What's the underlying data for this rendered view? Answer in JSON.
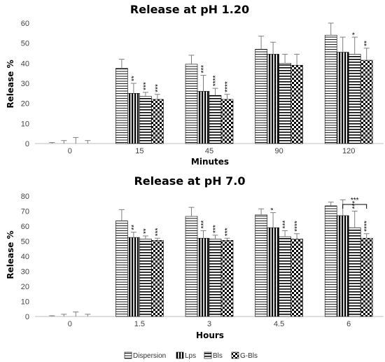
{
  "chart_data": [
    {
      "type": "bar",
      "title": "Release at pH 1.20",
      "xlabel": "Minutes",
      "ylabel": "Release %",
      "ylim": [
        0,
        60
      ],
      "yticks": [
        0,
        10,
        20,
        30,
        40,
        50,
        60
      ],
      "grid": false,
      "categories": [
        "0",
        "15",
        "45",
        "90",
        "120"
      ],
      "series": [
        {
          "name": "Dispersion",
          "values": [
            0,
            37.5,
            39.5,
            47,
            54
          ],
          "errors": [
            0.5,
            4.5,
            4.5,
            6.5,
            6
          ]
        },
        {
          "name": "Lps",
          "values": [
            0,
            25,
            26,
            44.5,
            45.5
          ],
          "errors": [
            1.5,
            5,
            8,
            6,
            7.5
          ]
        },
        {
          "name": "Bls",
          "values": [
            0,
            23.5,
            24,
            40,
            44.5
          ],
          "errors": [
            3,
            2,
            3.5,
            4.5,
            8.5
          ]
        },
        {
          "name": "G-Bls",
          "values": [
            0,
            22,
            22,
            39,
            41.5
          ],
          "errors": [
            1.5,
            2.5,
            2.5,
            5.5,
            6
          ]
        }
      ],
      "significance": [
        {
          "category": "15",
          "series": "Lps",
          "label": "**"
        },
        {
          "category": "15",
          "series": "Bls",
          "label": "***"
        },
        {
          "category": "15",
          "series": "G-Bls",
          "label": "***"
        },
        {
          "category": "45",
          "series": "Lps",
          "label": "***"
        },
        {
          "category": "45",
          "series": "Bls",
          "label": "****"
        },
        {
          "category": "45",
          "series": "G-Bls",
          "label": "****"
        },
        {
          "category": "120",
          "series": "Bls",
          "label": "*"
        },
        {
          "category": "120",
          "series": "G-Bls",
          "label": "**"
        }
      ]
    },
    {
      "type": "bar",
      "title": "Release at pH 7.0",
      "xlabel": "Hours",
      "ylabel": "Release %",
      "ylim": [
        0,
        80
      ],
      "yticks": [
        0,
        10,
        20,
        30,
        40,
        50,
        60,
        70,
        80
      ],
      "grid": false,
      "categories": [
        "0",
        "1.5",
        "3",
        "4.5",
        "6"
      ],
      "series": [
        {
          "name": "Dispersion",
          "values": [
            0,
            63.5,
            66.5,
            67.5,
            73.5
          ],
          "errors": [
            0.5,
            7.5,
            6,
            4,
            2.5
          ]
        },
        {
          "name": "Lps",
          "values": [
            0,
            52.5,
            52,
            59,
            67
          ],
          "errors": [
            1.5,
            3.5,
            5,
            10,
            10.5
          ]
        },
        {
          "name": "Bls",
          "values": [
            0,
            51.5,
            51.5,
            53,
            59
          ],
          "errors": [
            3,
            2,
            2.5,
            4,
            11
          ]
        },
        {
          "name": "G-Bls",
          "values": [
            0,
            50.5,
            50.5,
            51.5,
            52
          ],
          "errors": [
            1.5,
            1.5,
            1.5,
            3.5,
            3
          ]
        }
      ],
      "significance": [
        {
          "category": "1.5",
          "series": "Lps",
          "label": "**"
        },
        {
          "category": "1.5",
          "series": "Bls",
          "label": "**"
        },
        {
          "category": "1.5",
          "series": "G-Bls",
          "label": "***"
        },
        {
          "category": "3",
          "series": "Lps",
          "label": "***"
        },
        {
          "category": "3",
          "series": "Bls",
          "label": "***"
        },
        {
          "category": "3",
          "series": "G-Bls",
          "label": "***"
        },
        {
          "category": "4.5",
          "series": "Lps",
          "label": "*"
        },
        {
          "category": "4.5",
          "series": "Bls",
          "label": "***"
        },
        {
          "category": "4.5",
          "series": "G-Bls",
          "label": "****"
        },
        {
          "category": "6",
          "series": "Bls",
          "label": "***"
        },
        {
          "category": "6",
          "series": "G-Bls",
          "label": "****"
        }
      ],
      "brackets": [
        {
          "category": "6",
          "from": "Lps",
          "to": "G-Bls",
          "label": "***"
        }
      ]
    }
  ],
  "legend": {
    "position": "bottom",
    "items": [
      "Dispersion",
      "Lps",
      "Bls",
      "G-Bls"
    ]
  }
}
